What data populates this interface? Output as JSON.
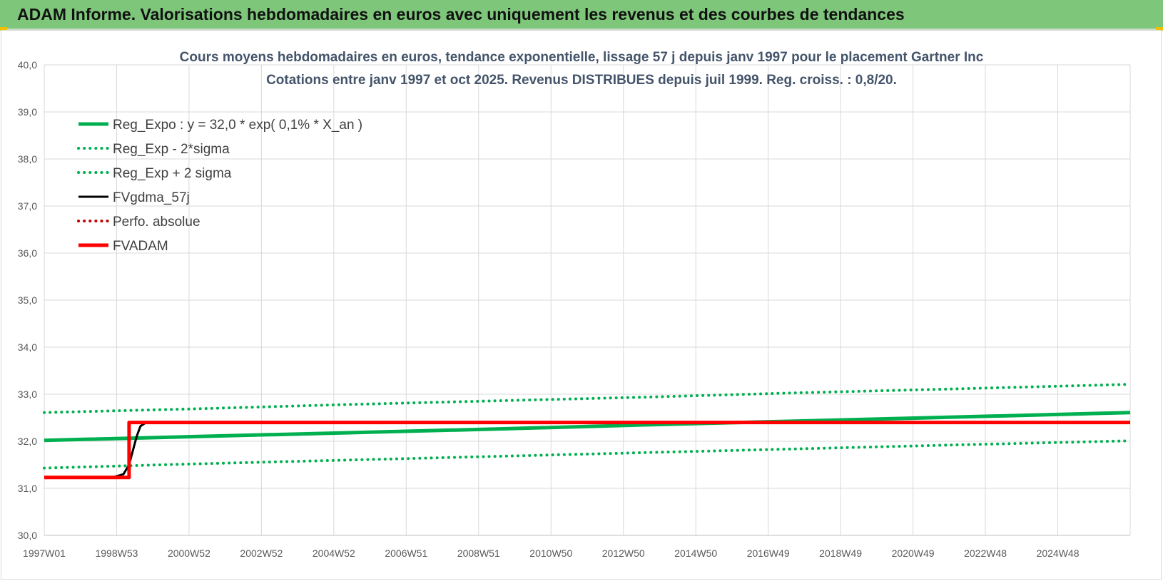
{
  "header": {
    "title": "ADAM Informe. Valorisations hebdomadaires en euros avec uniquement les revenus et des courbes de tendances"
  },
  "colors": {
    "header_bg": "#7ec77a",
    "reg_green": "#00b050",
    "fvgdma_black": "#000000",
    "red": "#ff0000",
    "perfo_red": "#c00000",
    "grid": "#d9d9d9",
    "accent_yellow": "#f0c000"
  },
  "chart_data": {
    "type": "line",
    "title": "Cours moyens hebdomadaires en euros, tendance exponentielle, lissage 57 j depuis janv 1997  pour le placement Gartner Inc",
    "subtitle": "Cotations entre janv 1997 et oct 2025. Revenus DISTRIBUES depuis juil 1999. Reg. croiss. : 0,8/20.",
    "xlabel": "",
    "ylabel": "",
    "x_ticks": [
      "1997W01",
      "1998W53",
      "2000W52",
      "2002W52",
      "2004W52",
      "2006W51",
      "2008W51",
      "2010W50",
      "2012W50",
      "2014W50",
      "2016W49",
      "2018W49",
      "2020W49",
      "2022W48",
      "2024W48"
    ],
    "x_range_years": [
      1997.0,
      2025.8
    ],
    "y_ticks": [
      "30,0",
      "31,0",
      "32,0",
      "33,0",
      "34,0",
      "35,0",
      "36,0",
      "37,0",
      "38,0",
      "39,0",
      "40,0"
    ],
    "ylim": [
      30,
      40
    ],
    "grid": true,
    "legend_position": "top-left",
    "series": [
      {
        "name": "Reg_Expo : y = 32,0 * exp( 0,1% *  X_an )",
        "style": "solid-thick",
        "color": "#00b050",
        "points": [
          [
            1997.0,
            32.02
          ],
          [
            2001.0,
            32.1
          ],
          [
            2005.0,
            32.18
          ],
          [
            2009.0,
            32.26
          ],
          [
            2013.0,
            32.35
          ],
          [
            2017.0,
            32.43
          ],
          [
            2021.0,
            32.51
          ],
          [
            2025.8,
            32.61
          ]
        ]
      },
      {
        "name": "Reg_Exp - 2*sigma",
        "style": "dotted",
        "color": "#00b050",
        "points": [
          [
            1997.0,
            31.43
          ],
          [
            2001.0,
            31.52
          ],
          [
            2005.0,
            31.6
          ],
          [
            2009.0,
            31.68
          ],
          [
            2013.0,
            31.76
          ],
          [
            2017.0,
            31.84
          ],
          [
            2021.0,
            31.92
          ],
          [
            2025.8,
            32.01
          ]
        ]
      },
      {
        "name": "Reg_Exp + 2 sigma",
        "style": "dotted",
        "color": "#00b050",
        "points": [
          [
            1997.0,
            32.61
          ],
          [
            2001.0,
            32.69
          ],
          [
            2005.0,
            32.78
          ],
          [
            2009.0,
            32.86
          ],
          [
            2013.0,
            32.94
          ],
          [
            2017.0,
            33.03
          ],
          [
            2021.0,
            33.11
          ],
          [
            2025.8,
            33.21
          ]
        ]
      },
      {
        "name": "FVgdma_57j",
        "style": "solid",
        "color": "#000000",
        "points": [
          [
            1998.8,
            31.23
          ],
          [
            1999.1,
            31.3
          ],
          [
            1999.25,
            31.5
          ],
          [
            1999.35,
            31.8
          ],
          [
            1999.45,
            32.1
          ],
          [
            1999.55,
            32.32
          ],
          [
            1999.7,
            32.4
          ],
          [
            2014.8,
            32.4
          ]
        ]
      },
      {
        "name": "Perfo. absolue",
        "style": "dotted",
        "color": "#c00000",
        "points": []
      },
      {
        "name": "FVADAM",
        "style": "solid-thick",
        "color": "#ff0000",
        "points": [
          [
            1997.0,
            31.23
          ],
          [
            1999.25,
            31.23
          ],
          [
            1999.25,
            32.4
          ],
          [
            2025.8,
            32.4
          ]
        ]
      }
    ]
  }
}
